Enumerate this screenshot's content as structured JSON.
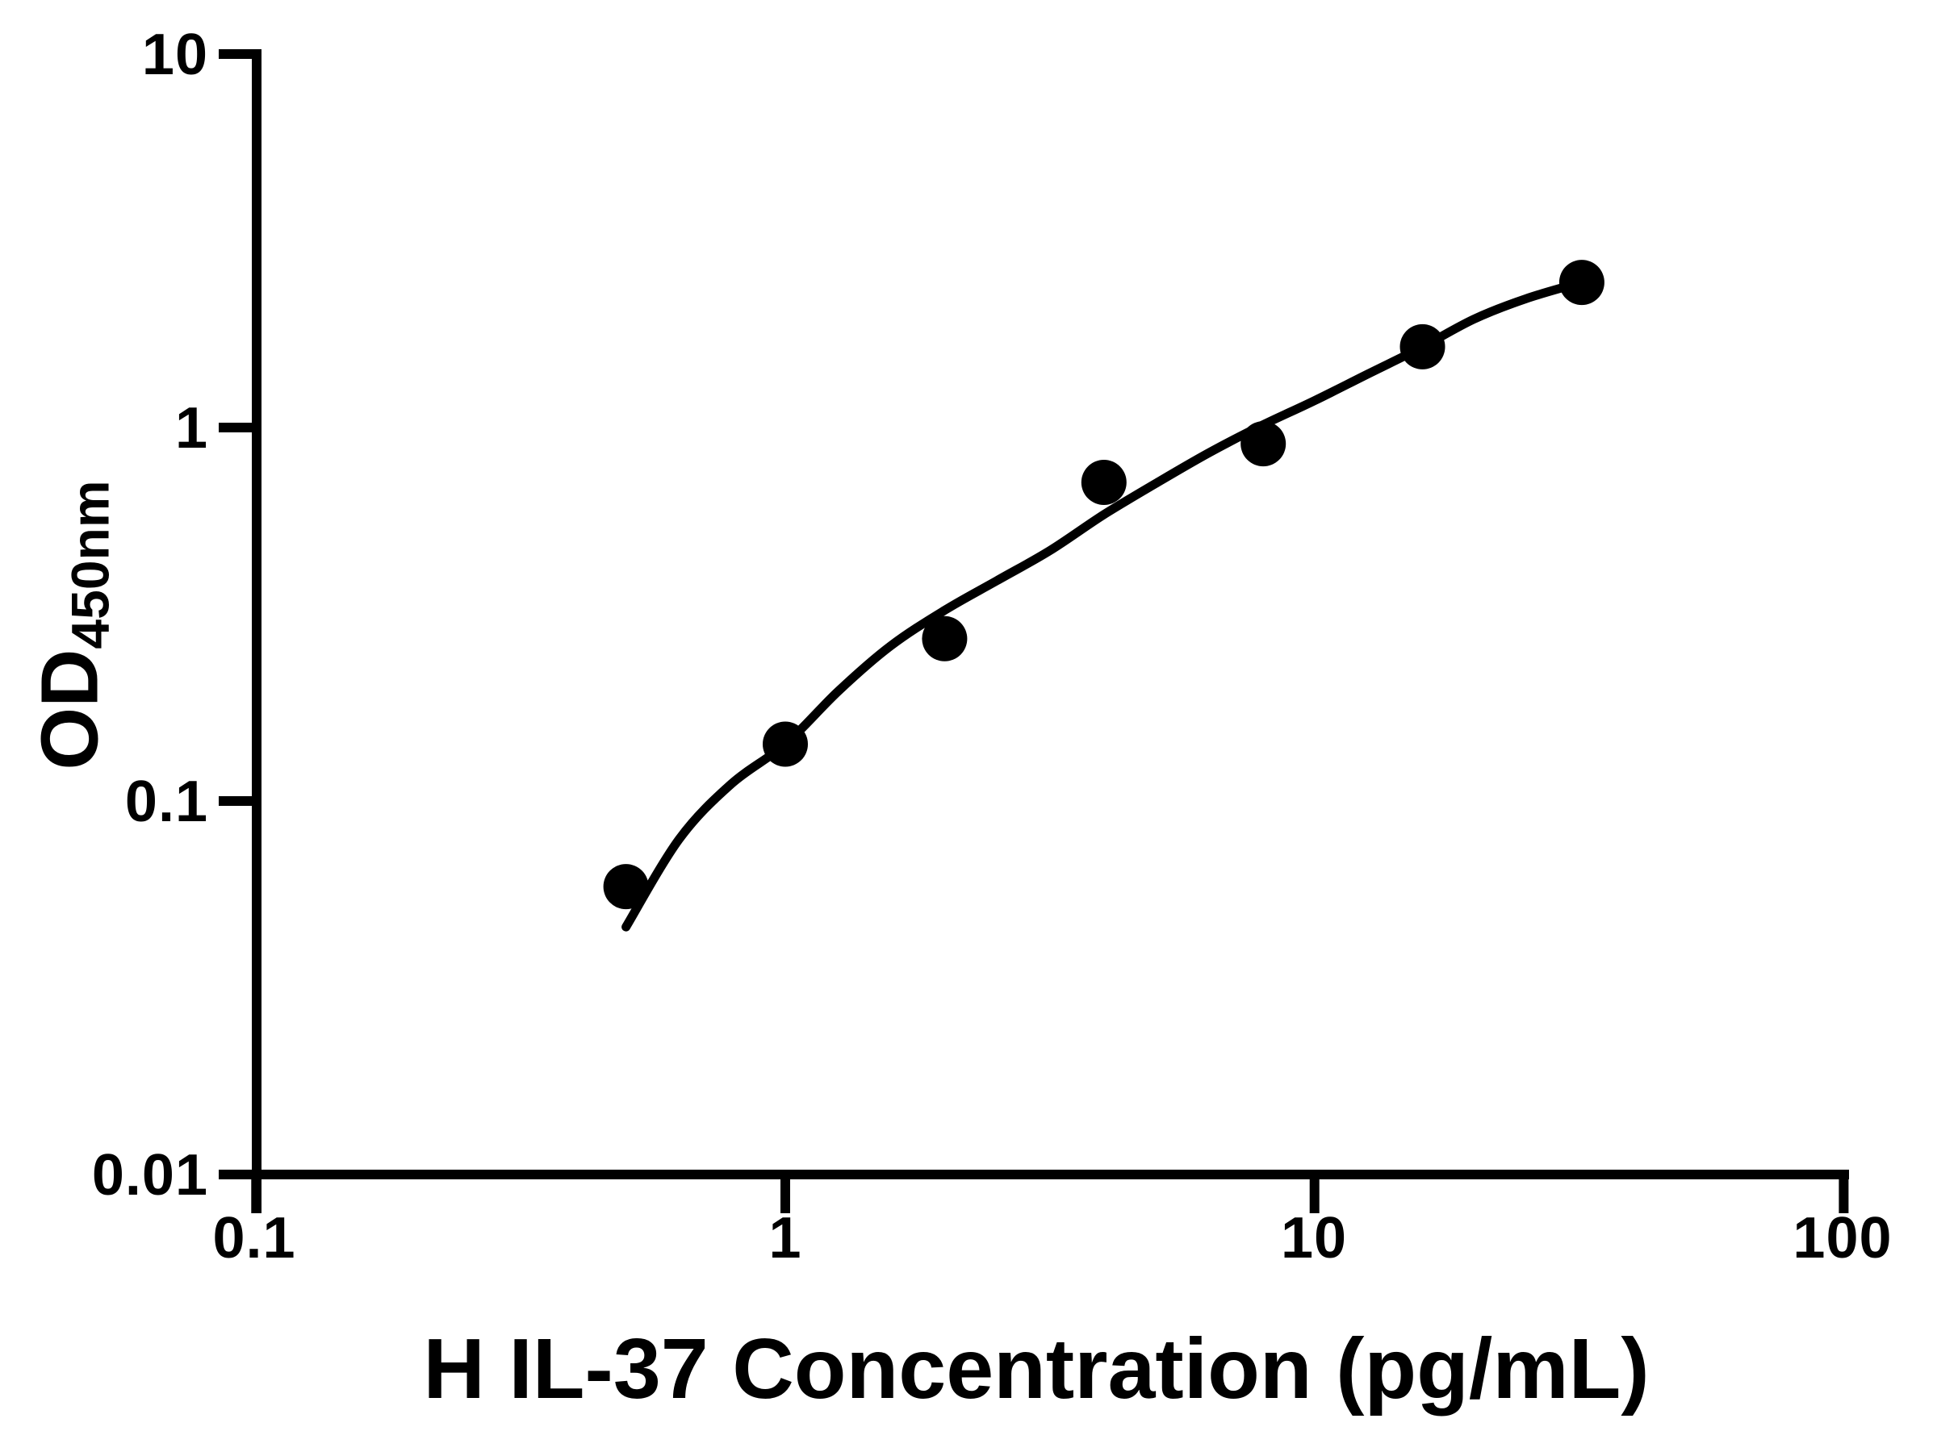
{
  "figure": {
    "background": "#ffffff",
    "ink_color": "#000000"
  },
  "chart_data": {
    "type": "scatter",
    "subtype": "log-log standard curve with fitted line",
    "xlabel": "H IL-37 Concentration (pg/mL)",
    "ylabel_main": "OD",
    "ylabel_sub": "450nm",
    "x_scale": "log10",
    "y_scale": "log10",
    "xlim": [
      0.1,
      100
    ],
    "ylim": [
      0.01,
      10
    ],
    "grid": false,
    "legend": "none",
    "x_tick_values": [
      0.1,
      1,
      10,
      100
    ],
    "x_tick_labels": [
      "0.1",
      "1",
      "10",
      "100"
    ],
    "y_tick_values": [
      10,
      1,
      0.1,
      0.01
    ],
    "y_tick_labels": [
      "10",
      "1",
      "0.1",
      "0.01"
    ],
    "series": [
      {
        "name": "standard-points",
        "marker": "filled-circle",
        "marker_radius_px": 28,
        "x": [
          0.5,
          1,
          2,
          4,
          8,
          16,
          32
        ],
        "y": [
          0.059,
          0.142,
          0.272,
          0.713,
          0.905,
          1.645,
          2.446
        ]
      }
    ],
    "fit_curve": {
      "name": "fitted-standard-curve",
      "x": [
        0.5,
        0.63,
        0.79,
        1.0,
        1.26,
        1.58,
        2.0,
        2.51,
        3.16,
        3.98,
        5.01,
        6.31,
        7.94,
        10.0,
        12.6,
        15.8,
        20.0,
        25.1,
        32.0
      ],
      "y": [
        0.046,
        0.079,
        0.111,
        0.142,
        0.197,
        0.26,
        0.324,
        0.389,
        0.468,
        0.582,
        0.708,
        0.855,
        1.012,
        1.18,
        1.39,
        1.629,
        1.95,
        2.213,
        2.449
      ]
    }
  }
}
